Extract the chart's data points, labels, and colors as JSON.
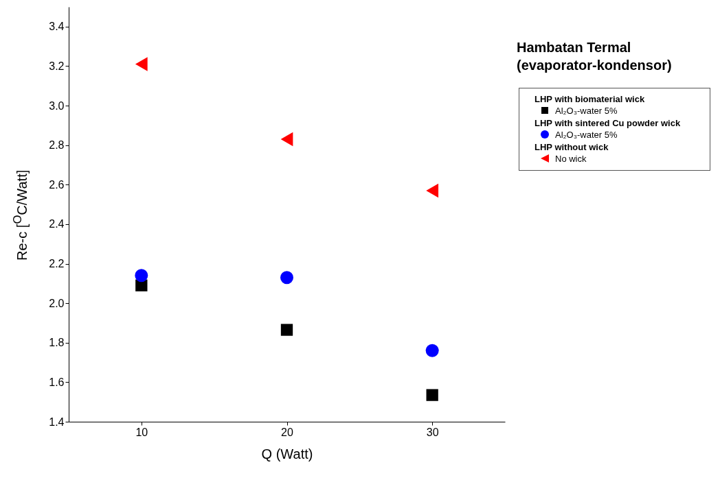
{
  "chart_data": {
    "type": "scatter",
    "title": "Hambatan Termal",
    "subtitle": "(evaporator-kondensor)",
    "xlabel": "Q (Watt)",
    "ylabel": "Re-c [$^{O}$C/Watt]",
    "x": [
      10,
      20,
      30
    ],
    "series": [
      {
        "name": "Al₂O₃-water 5%",
        "color": "#000000",
        "marker": "square",
        "values": [
          2.09,
          1.865,
          1.535
        ]
      },
      {
        "name": "Al₂O₃-water 5%",
        "color": "#0000ff",
        "marker": "circle",
        "values": [
          2.14,
          2.13,
          1.76
        ]
      },
      {
        "name": "No wick",
        "color": "#ff0000",
        "marker": "triangle",
        "values": [
          3.21,
          2.83,
          2.57
        ]
      }
    ],
    "annotations": [
      "LHP with biomaterial wick",
      "LHP with sintered Cu powder wick",
      "LHP without wick"
    ],
    "xlim": [
      5,
      35
    ],
    "xticks": [
      10,
      20,
      30
    ],
    "ylim": [
      1.4,
      3.5
    ],
    "yticks": [
      1.4,
      1.6,
      1.8,
      {
        "value": 2,
        "label": "2.0"
      },
      2.2,
      2.4,
      2.6,
      2.8,
      {
        "value": 3,
        "label": "3.0"
      },
      3.2,
      3.4
    ],
    "grid": false,
    "legend": "right"
  }
}
